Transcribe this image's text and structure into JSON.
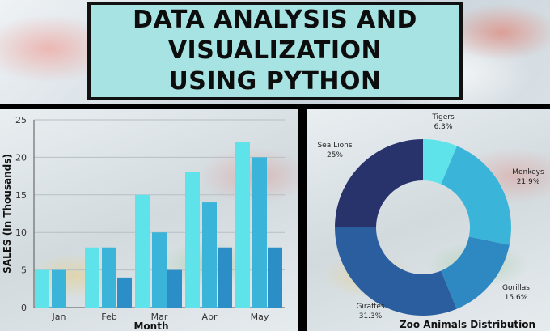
{
  "title": "DATA ANALYSIS AND\nVISUALIZATION\nUSING PYTHON",
  "colors": {
    "title_bg": "#a6e3e2",
    "bar_series": [
      "#5fe3ea",
      "#3ab4d8",
      "#2b8ec6"
    ],
    "donut": [
      "#5fe3ea",
      "#3ab4d8",
      "#2e89c2",
      "#2a5e9e",
      "#29336b"
    ]
  },
  "chart_data": [
    {
      "type": "bar",
      "categories": [
        "Jan",
        "Feb",
        "Mar",
        "Apr",
        "May"
      ],
      "series": [
        {
          "values": [
            5,
            8,
            15,
            18,
            22
          ]
        },
        {
          "values": [
            5,
            8,
            10,
            14,
            20
          ]
        },
        {
          "values": [
            null,
            4,
            5,
            8,
            8
          ]
        }
      ],
      "xlabel": "Month",
      "ylabel": "SALES (In Thousands)",
      "ylim": [
        0,
        25
      ],
      "yticks": [
        0,
        5,
        10,
        15,
        20,
        25
      ],
      "grid": true
    },
    {
      "type": "pie",
      "donut": true,
      "title": "Zoo Animals Distribution",
      "slices": [
        {
          "label": "Tigers",
          "value": 6.3,
          "text": "6.3%"
        },
        {
          "label": "Monkeys",
          "value": 21.9,
          "text": "21.9%"
        },
        {
          "label": "Gorillas",
          "value": 15.6,
          "text": "15.6%"
        },
        {
          "label": "Giraffes",
          "value": 31.3,
          "text": "31.3%"
        },
        {
          "label": "Sea Lions",
          "value": 25,
          "text": "25%"
        }
      ]
    }
  ]
}
